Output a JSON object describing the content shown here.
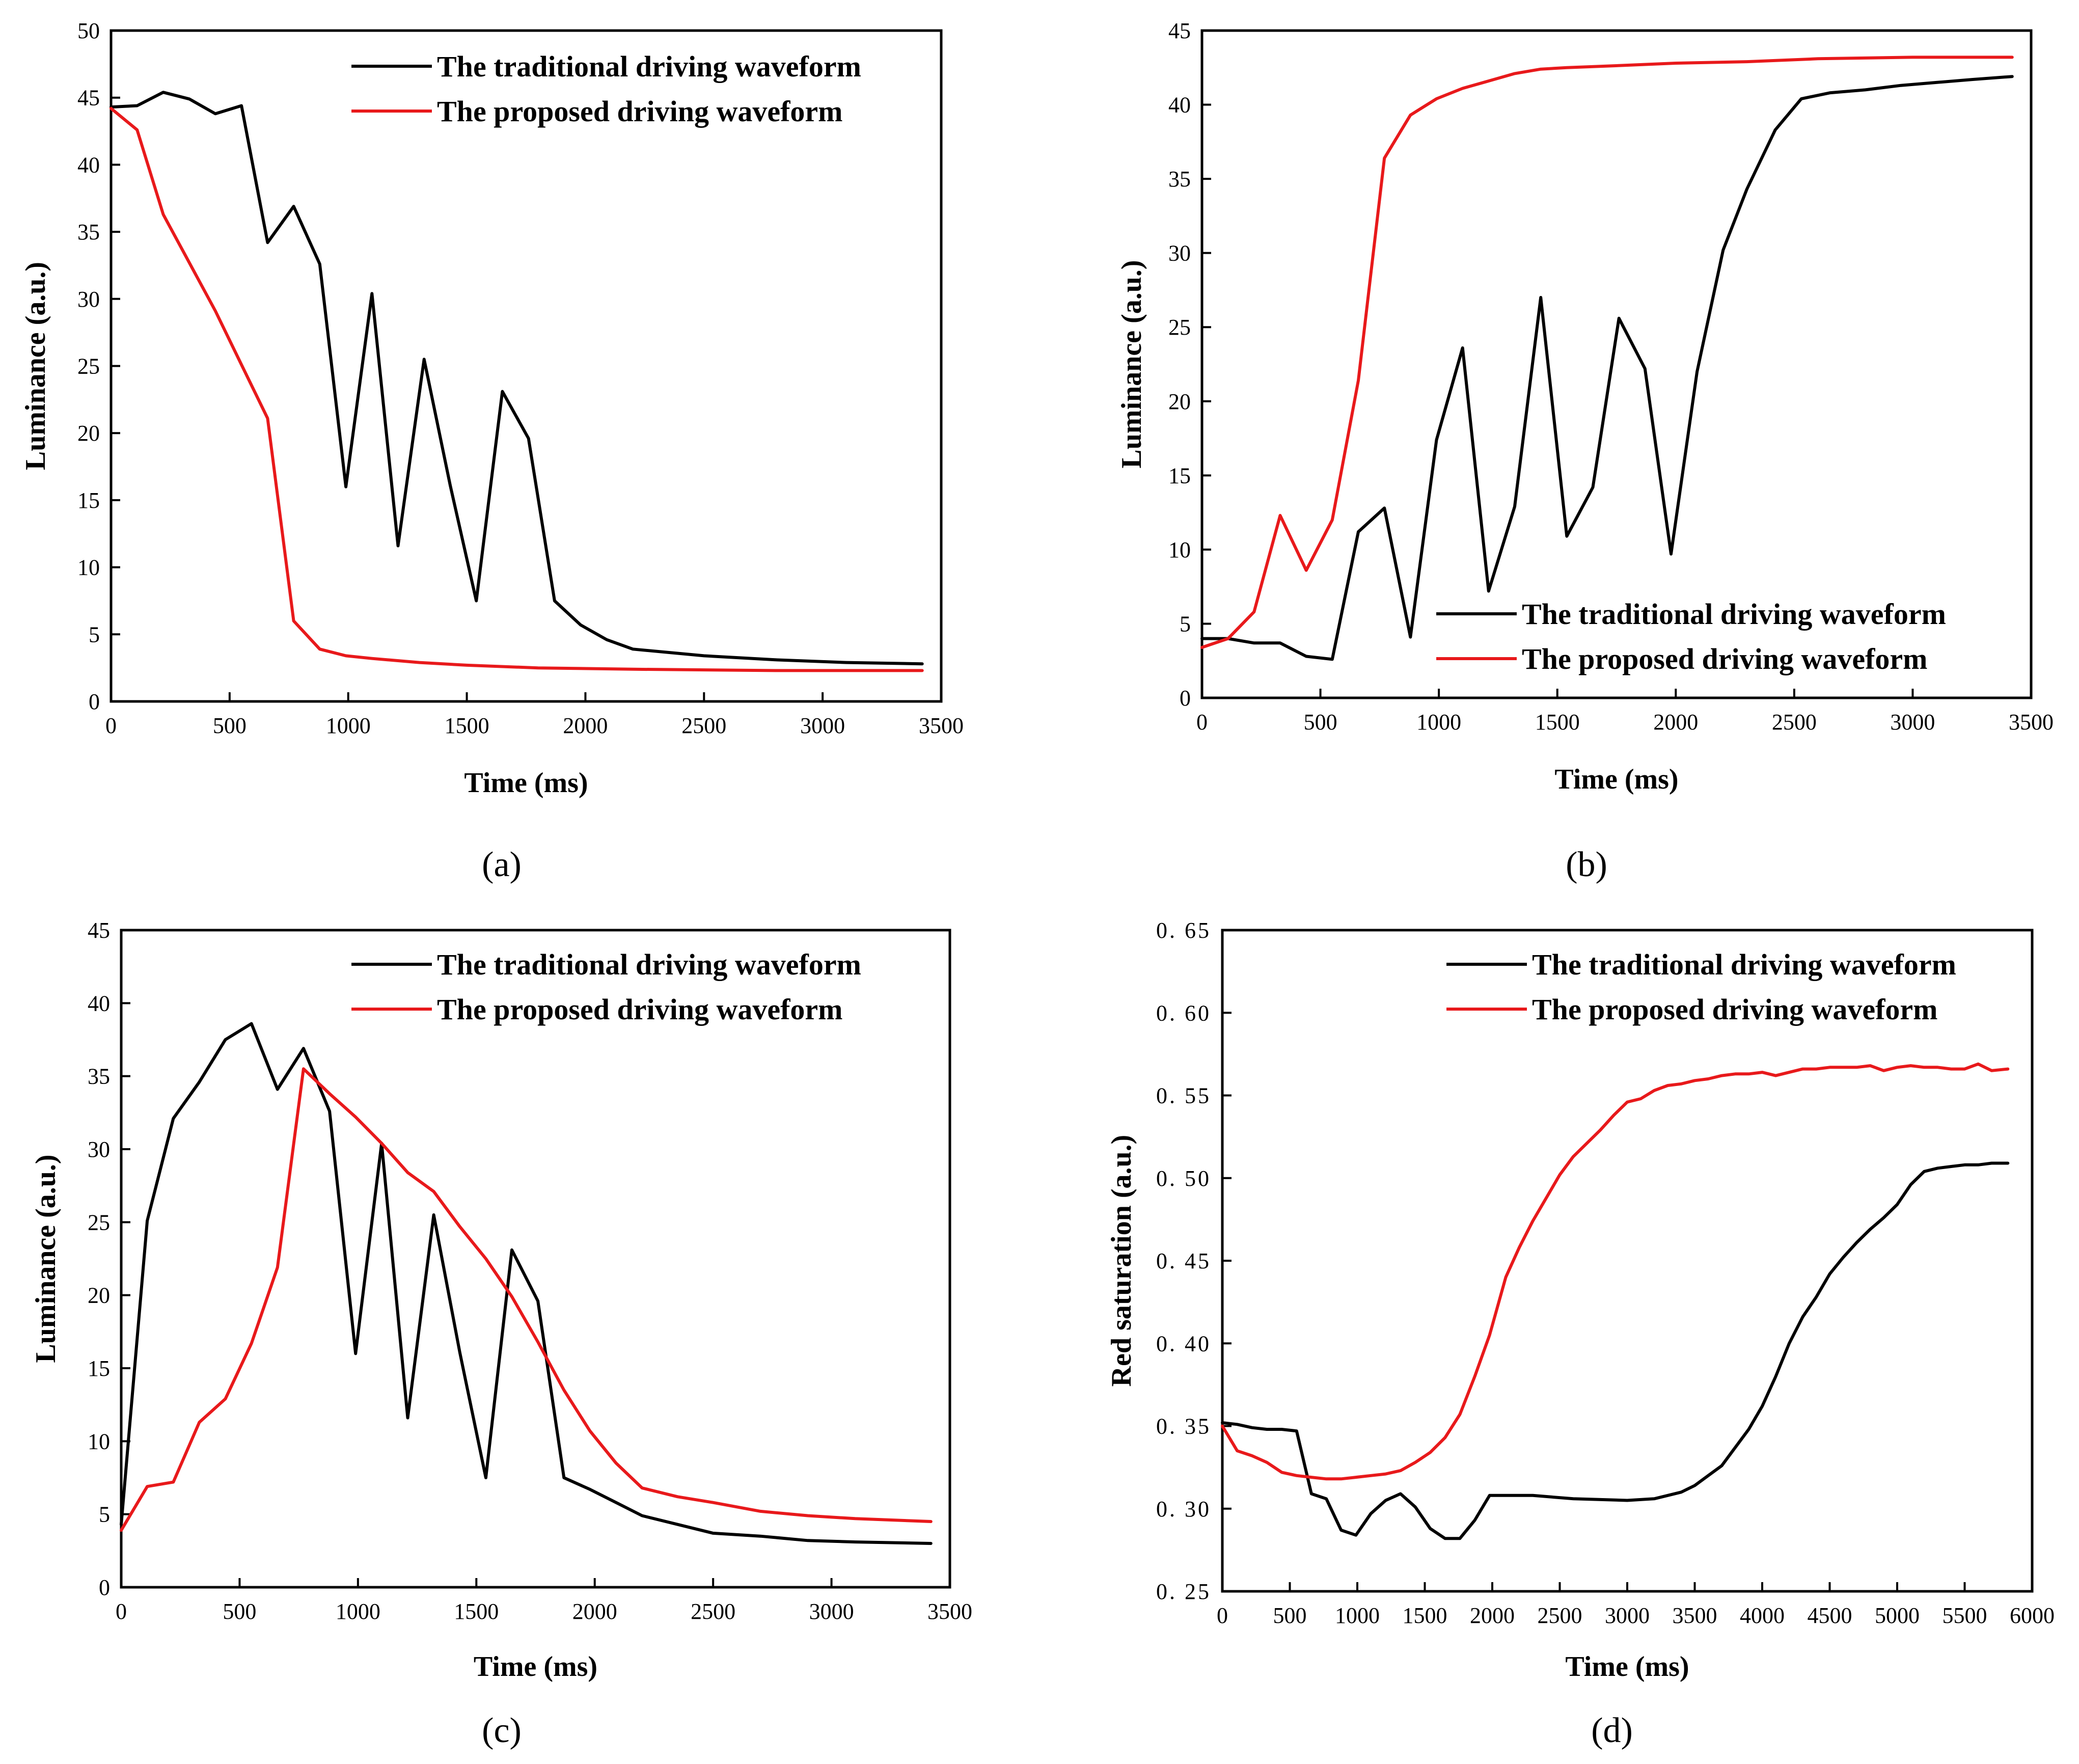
{
  "figure": {
    "colors": {
      "traditional": "#000000",
      "proposed": "#e8191b",
      "axis": "#000000"
    }
  },
  "chart_data": [
    {
      "id": "a",
      "type": "line",
      "panel_label": "(a)",
      "xlabel": "Time (ms)",
      "ylabel": "Luminance (a.u.)",
      "xlim": [
        0,
        3500
      ],
      "ylim": [
        0,
        50
      ],
      "xticks": [
        0,
        500,
        1000,
        1500,
        2000,
        2500,
        3000,
        3500
      ],
      "yticks": [
        0,
        5,
        10,
        15,
        20,
        25,
        30,
        35,
        40,
        45,
        50
      ],
      "legend_position": "top-right",
      "series": [
        {
          "name": "The traditional driving waveform",
          "color": "#000000",
          "x": [
            0,
            110,
            220,
            330,
            440,
            550,
            660,
            770,
            880,
            990,
            1100,
            1210,
            1320,
            1430,
            1540,
            1650,
            1760,
            1870,
            1980,
            2090,
            2200,
            2500,
            2800,
            3100,
            3420
          ],
          "y": [
            44.3,
            44.4,
            45.4,
            44.9,
            43.8,
            44.4,
            34.2,
            36.9,
            32.6,
            16.0,
            30.4,
            11.6,
            25.5,
            16.1,
            7.5,
            23.1,
            19.6,
            7.5,
            5.7,
            4.6,
            3.9,
            3.4,
            3.1,
            2.9,
            2.8
          ]
        },
        {
          "name": "The proposed driving waveform",
          "color": "#e8191b",
          "x": [
            0,
            110,
            220,
            330,
            440,
            550,
            660,
            770,
            880,
            990,
            1100,
            1300,
            1500,
            1800,
            2200,
            2800,
            3420
          ],
          "y": [
            44.2,
            42.6,
            36.3,
            32.7,
            29.1,
            25.1,
            21.1,
            6.0,
            3.9,
            3.4,
            3.2,
            2.9,
            2.7,
            2.5,
            2.4,
            2.3,
            2.3
          ]
        }
      ]
    },
    {
      "id": "b",
      "type": "line",
      "panel_label": "(b)",
      "xlabel": "Time (ms)",
      "ylabel": "Luminance (a.u.)",
      "xlim": [
        0,
        3500
      ],
      "ylim": [
        0,
        45
      ],
      "xticks": [
        0,
        500,
        1000,
        1500,
        2000,
        2500,
        3000,
        3500
      ],
      "yticks": [
        0,
        5,
        10,
        15,
        20,
        25,
        30,
        35,
        40,
        45
      ],
      "legend_position": "bottom-right",
      "series": [
        {
          "name": "The traditional driving waveform",
          "color": "#000000",
          "x": [
            0,
            110,
            220,
            330,
            440,
            550,
            660,
            770,
            880,
            990,
            1100,
            1210,
            1320,
            1430,
            1540,
            1650,
            1760,
            1870,
            1980,
            2090,
            2200,
            2300,
            2420,
            2530,
            2650,
            2800,
            2950,
            3100,
            3250,
            3420
          ],
          "y": [
            4.0,
            4.0,
            3.7,
            3.7,
            2.8,
            2.6,
            11.2,
            12.8,
            4.1,
            17.4,
            23.6,
            7.2,
            12.9,
            27.0,
            10.9,
            14.2,
            25.6,
            22.2,
            9.7,
            22.0,
            30.2,
            34.3,
            38.3,
            40.4,
            40.8,
            41.0,
            41.3,
            41.5,
            41.7,
            41.9
          ]
        },
        {
          "name": "The proposed driving waveform",
          "color": "#e8191b",
          "x": [
            0,
            110,
            220,
            330,
            440,
            550,
            660,
            770,
            880,
            990,
            1100,
            1210,
            1320,
            1430,
            1540,
            1700,
            2000,
            2300,
            2600,
            3000,
            3420
          ],
          "y": [
            3.4,
            4.0,
            5.8,
            12.3,
            8.6,
            12.0,
            21.4,
            36.4,
            39.3,
            40.4,
            41.1,
            41.6,
            42.1,
            42.4,
            42.5,
            42.6,
            42.8,
            42.9,
            43.1,
            43.2,
            43.2
          ]
        }
      ]
    },
    {
      "id": "c",
      "type": "line",
      "panel_label": "(c)",
      "xlabel": "Time (ms)",
      "ylabel": "Luminance (a.u.)",
      "xlim": [
        0,
        3500
      ],
      "ylim": [
        0,
        45
      ],
      "xticks": [
        0,
        500,
        1000,
        1500,
        2000,
        2500,
        3000,
        3500
      ],
      "yticks": [
        0,
        5,
        10,
        15,
        20,
        25,
        30,
        35,
        40,
        45
      ],
      "legend_position": "top-right",
      "series": [
        {
          "name": "The traditional driving waveform",
          "color": "#000000",
          "x": [
            0,
            110,
            220,
            330,
            440,
            550,
            660,
            770,
            880,
            990,
            1100,
            1210,
            1320,
            1430,
            1540,
            1650,
            1760,
            1870,
            1980,
            2090,
            2200,
            2350,
            2500,
            2700,
            2900,
            3100,
            3420
          ],
          "y": [
            4.3,
            25.1,
            32.1,
            34.6,
            37.5,
            38.6,
            34.1,
            36.9,
            32.6,
            16.0,
            30.4,
            11.6,
            25.5,
            16.1,
            7.5,
            23.1,
            19.6,
            7.5,
            6.7,
            5.8,
            4.9,
            4.3,
            3.7,
            3.5,
            3.2,
            3.1,
            3.0
          ]
        },
        {
          "name": "The proposed driving waveform",
          "color": "#e8191b",
          "x": [
            0,
            110,
            220,
            330,
            440,
            550,
            660,
            770,
            880,
            990,
            1100,
            1210,
            1320,
            1430,
            1540,
            1650,
            1760,
            1870,
            1980,
            2090,
            2200,
            2350,
            2500,
            2700,
            2900,
            3100,
            3420
          ],
          "y": [
            3.9,
            6.9,
            7.2,
            11.3,
            12.9,
            16.7,
            21.9,
            35.5,
            33.8,
            32.2,
            30.4,
            28.4,
            27.1,
            24.7,
            22.5,
            19.9,
            16.8,
            13.5,
            10.7,
            8.5,
            6.8,
            6.2,
            5.8,
            5.2,
            4.9,
            4.7,
            4.5
          ]
        }
      ]
    },
    {
      "id": "d",
      "type": "line",
      "panel_label": "(d)",
      "xlabel": "Time (ms)",
      "ylabel": "Red saturation (a.u.)",
      "xlim": [
        0,
        6000
      ],
      "ylim": [
        0.25,
        0.65
      ],
      "xticks": [
        0,
        500,
        1000,
        1500,
        2000,
        2500,
        3000,
        3500,
        4000,
        4500,
        5000,
        5500,
        6000
      ],
      "yticks": [
        "0.25",
        "0.30",
        "0.35",
        "0.40",
        "0.45",
        "0.50",
        "0.55",
        "0.60",
        "0.65"
      ],
      "yticklabels": [
        "0. 25",
        "0. 30",
        "0. 35",
        "0. 40",
        "0. 45",
        "0. 50",
        "0. 55",
        "0. 60",
        "0. 65"
      ],
      "legend_position": "top-right",
      "series": [
        {
          "name": "The traditional driving waveform",
          "color": "#000000",
          "x": [
            0,
            110,
            220,
            330,
            440,
            550,
            660,
            770,
            880,
            990,
            1100,
            1210,
            1320,
            1430,
            1540,
            1650,
            1760,
            1870,
            1980,
            2100,
            2300,
            2600,
            3000,
            3200,
            3400,
            3500,
            3600,
            3700,
            3800,
            3900,
            4000,
            4100,
            4200,
            4300,
            4400,
            4500,
            4600,
            4700,
            4800,
            4900,
            5000,
            5100,
            5200,
            5300,
            5400,
            5500,
            5600,
            5700,
            5820
          ],
          "y": [
            0.352,
            0.351,
            0.349,
            0.348,
            0.348,
            0.347,
            0.309,
            0.306,
            0.287,
            0.284,
            0.297,
            0.305,
            0.309,
            0.301,
            0.288,
            0.282,
            0.282,
            0.293,
            0.308,
            0.308,
            0.308,
            0.306,
            0.305,
            0.306,
            0.31,
            0.314,
            0.32,
            0.326,
            0.337,
            0.348,
            0.362,
            0.38,
            0.4,
            0.416,
            0.428,
            0.442,
            0.452,
            0.461,
            0.469,
            0.476,
            0.484,
            0.496,
            0.504,
            0.506,
            0.507,
            0.508,
            0.508,
            0.509,
            0.509
          ]
        },
        {
          "name": "The proposed driving waveform",
          "color": "#e8191b",
          "x": [
            0,
            110,
            220,
            330,
            440,
            550,
            660,
            770,
            880,
            990,
            1100,
            1210,
            1320,
            1430,
            1540,
            1650,
            1760,
            1870,
            1980,
            2100,
            2200,
            2300,
            2400,
            2500,
            2600,
            2700,
            2800,
            2900,
            3000,
            3100,
            3200,
            3300,
            3400,
            3500,
            3600,
            3700,
            3800,
            3900,
            4000,
            4100,
            4200,
            4300,
            4400,
            4500,
            4600,
            4700,
            4800,
            4900,
            5000,
            5100,
            5200,
            5300,
            5400,
            5500,
            5600,
            5700,
            5820
          ],
          "y": [
            0.35,
            0.335,
            0.332,
            0.328,
            0.322,
            0.32,
            0.319,
            0.318,
            0.318,
            0.319,
            0.32,
            0.321,
            0.323,
            0.328,
            0.334,
            0.343,
            0.357,
            0.38,
            0.405,
            0.44,
            0.458,
            0.474,
            0.488,
            0.502,
            0.513,
            0.521,
            0.529,
            0.538,
            0.546,
            0.548,
            0.553,
            0.556,
            0.557,
            0.559,
            0.56,
            0.562,
            0.563,
            0.563,
            0.564,
            0.562,
            0.564,
            0.566,
            0.566,
            0.567,
            0.567,
            0.567,
            0.568,
            0.565,
            0.567,
            0.568,
            0.567,
            0.567,
            0.566,
            0.566,
            0.569,
            0.565,
            0.566
          ]
        }
      ]
    }
  ]
}
